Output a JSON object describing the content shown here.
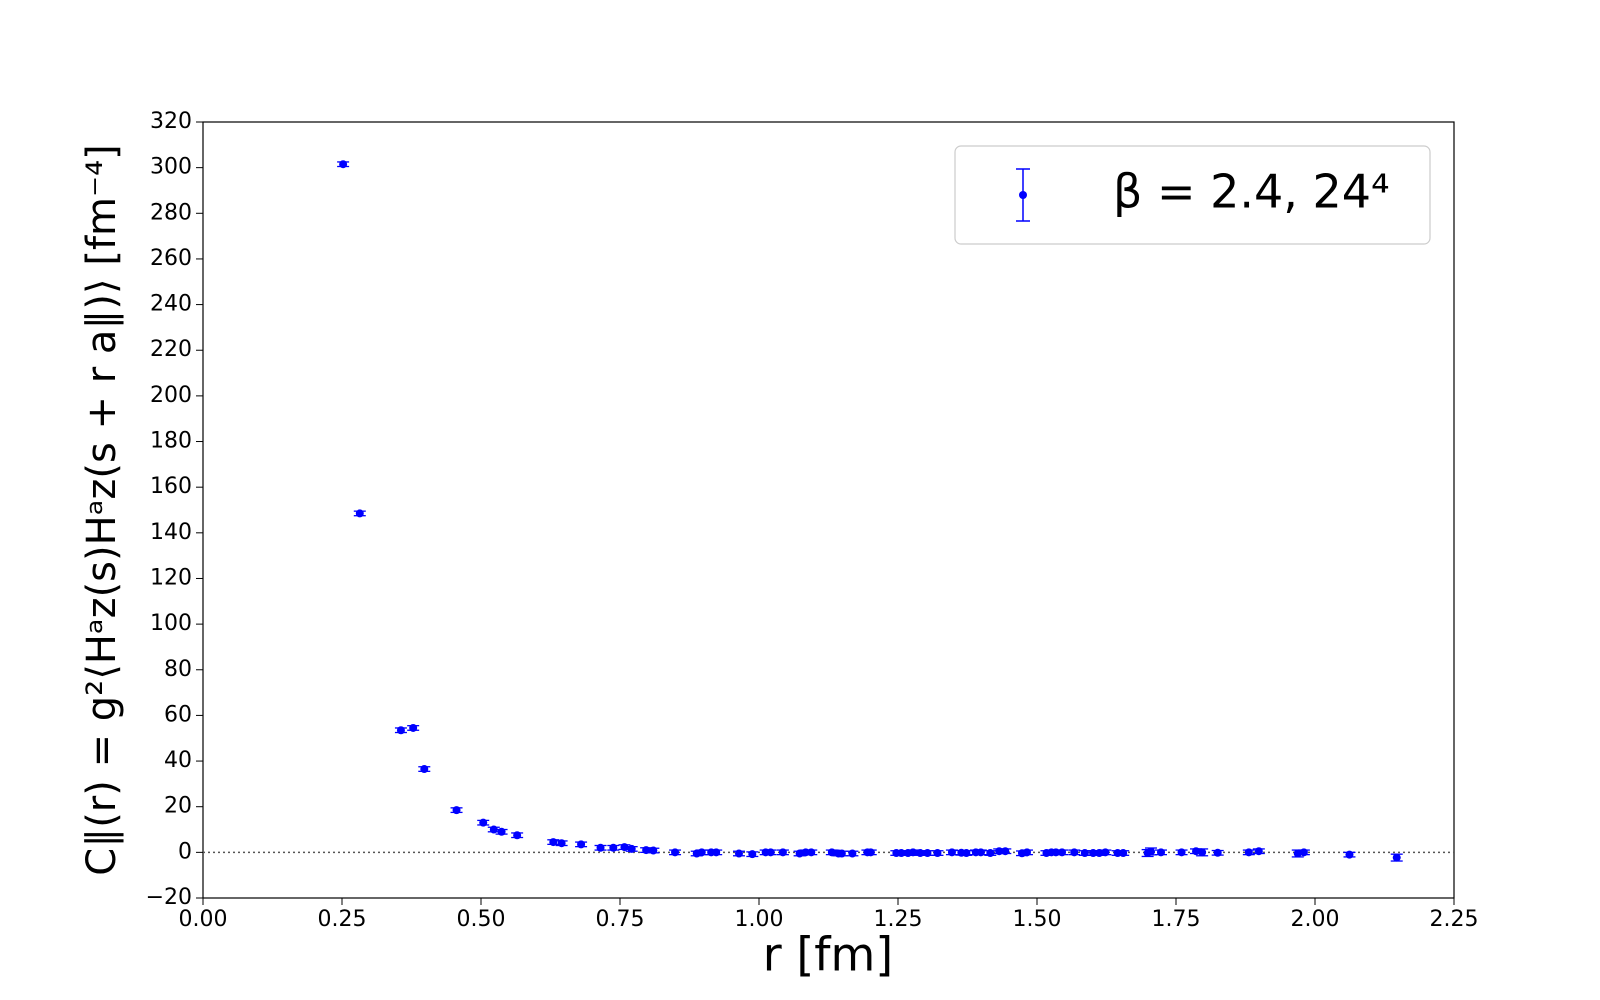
{
  "chart_data": {
    "type": "scatter",
    "x_label": "r [fm]",
    "y_label": "C∥(r) = g²⟨Hᵃz(s)Hᵃz(s + r a∥)⟩ [fm⁻⁴]",
    "x": [
      0.252,
      0.282,
      0.356,
      0.378,
      0.398,
      0.456,
      0.504,
      0.523,
      0.537,
      0.565,
      0.63,
      0.645,
      0.68,
      0.715,
      0.738,
      0.758,
      0.771,
      0.797,
      0.81,
      0.849,
      0.888,
      0.897,
      0.914,
      0.923,
      0.964,
      0.988,
      1.012,
      1.021,
      1.043,
      1.073,
      1.084,
      1.094,
      1.131,
      1.143,
      1.149,
      1.168,
      1.195,
      1.201,
      1.247,
      1.256,
      1.268,
      1.277,
      1.29,
      1.303,
      1.321,
      1.347,
      1.364,
      1.373,
      1.39,
      1.399,
      1.416,
      1.432,
      1.443,
      1.473,
      1.482,
      1.517,
      1.526,
      1.534,
      1.545,
      1.567,
      1.586,
      1.601,
      1.612,
      1.623,
      1.645,
      1.655,
      1.699,
      1.705,
      1.723,
      1.76,
      1.786,
      1.797,
      1.825,
      1.881,
      1.899,
      1.969,
      1.98,
      2.062,
      2.147
    ],
    "series": [
      {
        "name": "β = 2.4, 24⁴",
        "color": "#0000ff",
        "values": [
          301.5,
          148.5,
          53.5,
          54.5,
          36.5,
          18.5,
          13,
          10,
          9,
          7.5,
          4.5,
          4,
          3.5,
          2,
          2,
          2.3,
          1.5,
          1,
          0.8,
          0,
          -0.5,
          0,
          0,
          0,
          -0.5,
          -0.8,
          0,
          0,
          0,
          -0.5,
          0,
          0,
          0,
          -0.5,
          -0.5,
          -0.5,
          0,
          0,
          -0.3,
          -0.3,
          -0.3,
          0,
          -0.3,
          -0.3,
          -0.3,
          0,
          -0.2,
          -0.3,
          0,
          0,
          -0.3,
          0.5,
          0.5,
          -0.4,
          0,
          -0.3,
          0,
          0,
          0,
          0,
          -0.3,
          -0.3,
          -0.3,
          0,
          -0.3,
          -0.3,
          -0.3,
          0.4,
          0,
          0,
          0.5,
          0,
          -0.2,
          0,
          0.5,
          -0.5,
          0,
          -1,
          -2.3
        ],
        "errors": [
          1,
          1,
          1,
          1,
          1,
          1,
          1,
          1,
          1,
          1,
          1,
          1,
          1,
          1,
          1,
          1,
          1,
          1,
          1,
          1,
          1,
          1,
          1,
          1,
          1,
          1,
          1,
          1,
          1,
          1,
          1,
          1,
          1,
          1,
          1,
          1,
          1,
          1,
          1,
          1,
          1,
          1,
          1,
          1,
          1,
          1,
          1,
          1,
          1,
          1,
          1,
          1,
          1,
          1,
          1,
          1,
          1,
          1,
          1,
          1,
          1,
          1,
          1,
          1,
          1,
          1,
          1.5,
          1.5,
          1,
          1,
          1,
          1.5,
          1,
          1,
          1,
          1.5,
          1,
          1,
          1.5
        ]
      }
    ],
    "xlim": [
      0,
      2.25
    ],
    "ylim": [
      -20,
      320
    ],
    "xticks": [
      {
        "value": 0,
        "label": "0.00"
      },
      0.25,
      {
        "value": 0.5,
        "label": "0.50"
      },
      0.75,
      {
        "value": 1,
        "label": "1.00"
      },
      1.25,
      {
        "value": 1.5,
        "label": "1.50"
      },
      1.75,
      {
        "value": 2,
        "label": "2.00"
      },
      2.25
    ],
    "yticks": [
      {
        "value": -20,
        "label": "−20"
      },
      0,
      20,
      40,
      60,
      80,
      100,
      120,
      140,
      160,
      180,
      200,
      220,
      240,
      260,
      280,
      300,
      320
    ],
    "reference_line": 0,
    "legend": "upper right"
  }
}
